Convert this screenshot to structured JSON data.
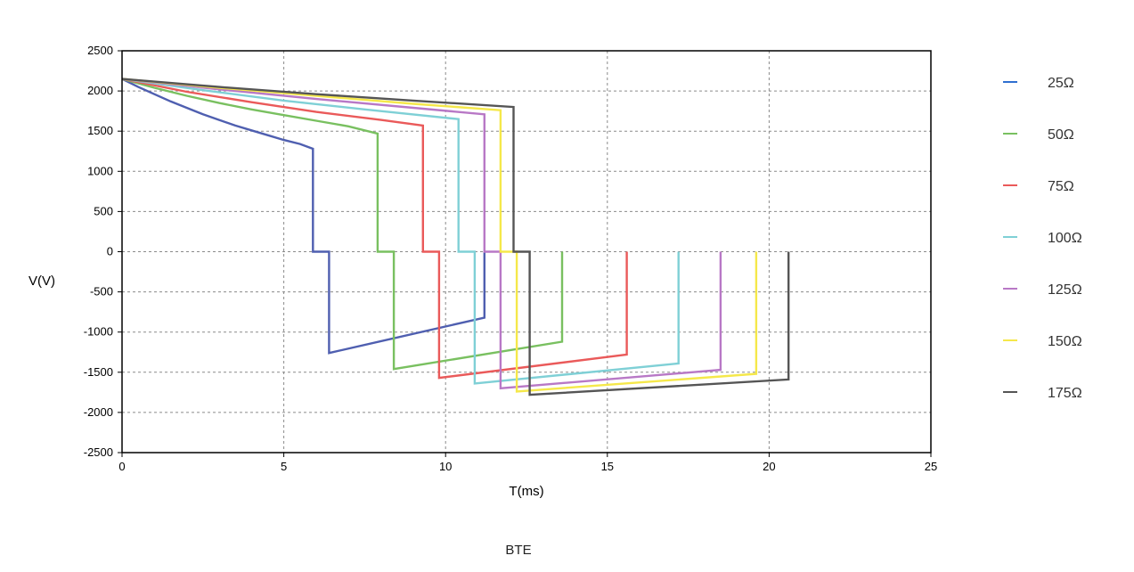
{
  "chart_data": {
    "type": "line",
    "title": "",
    "xlabel": "T(ms)",
    "ylabel": "V(V)",
    "caption": "BTE",
    "xlim": [
      0,
      25
    ],
    "ylim": [
      -2500,
      2500
    ],
    "xticks": [
      "0",
      "5",
      "10",
      "15",
      "20",
      "25"
    ],
    "yticks": [
      "2500",
      "2000",
      "1500",
      "1000",
      "500",
      "0",
      "-500",
      "-1000",
      "-1500",
      "-2000",
      "-2500"
    ],
    "grid": true,
    "legend_position": "right",
    "series": [
      {
        "name": "25Ω",
        "color": "#4f5fb0",
        "legend_color": "#2f6fd0",
        "x": [
          0,
          0.5,
          1,
          1.5,
          2,
          2.5,
          3,
          3.5,
          4,
          4.5,
          5,
          5.5,
          5.9,
          5.9,
          6.4,
          6.4,
          11.2,
          11.2
        ],
        "y": [
          2150,
          2050,
          1960,
          1870,
          1790,
          1710,
          1640,
          1570,
          1510,
          1450,
          1390,
          1340,
          1280,
          0,
          0,
          -1260,
          -820,
          0
        ]
      },
      {
        "name": "50Ω",
        "color": "#79c060",
        "x": [
          0,
          1,
          2,
          3,
          4,
          5,
          6,
          7,
          7.9,
          7.9,
          8.4,
          8.4,
          13.6,
          13.6
        ],
        "y": [
          2150,
          2040,
          1940,
          1850,
          1770,
          1700,
          1630,
          1560,
          1470,
          0,
          0,
          -1460,
          -1120,
          0
        ]
      },
      {
        "name": "75Ω",
        "color": "#ea5a5a",
        "x": [
          0,
          2,
          4,
          6,
          8,
          9.3,
          9.3,
          9.8,
          9.8,
          15.6,
          15.6
        ],
        "y": [
          2150,
          1990,
          1860,
          1740,
          1640,
          1570,
          0,
          0,
          -1570,
          -1280,
          0
        ]
      },
      {
        "name": "100Ω",
        "color": "#7fd0d6",
        "x": [
          0,
          2.5,
          5,
          7.5,
          10.4,
          10.4,
          10.9,
          10.9,
          17.2,
          17.2
        ],
        "y": [
          2150,
          2010,
          1880,
          1770,
          1650,
          0,
          0,
          -1640,
          -1390,
          0
        ]
      },
      {
        "name": "125Ω",
        "color": "#b878c6",
        "x": [
          0,
          3,
          6,
          9,
          11.2,
          11.2,
          11.7,
          11.7,
          18.5,
          18.5
        ],
        "y": [
          2150,
          2020,
          1900,
          1790,
          1710,
          0,
          0,
          -1700,
          -1470,
          0
        ]
      },
      {
        "name": "150Ω",
        "color": "#f5e84a",
        "x": [
          0,
          3,
          6,
          9,
          11.7,
          11.7,
          12.2,
          12.2,
          19.6,
          19.6
        ],
        "y": [
          2150,
          2040,
          1940,
          1840,
          1760,
          0,
          0,
          -1740,
          -1520,
          0
        ]
      },
      {
        "name": "175Ω",
        "color": "#555555",
        "x": [
          0,
          3,
          6,
          9,
          12.1,
          12.1,
          12.6,
          12.6,
          20.6,
          20.6
        ],
        "y": [
          2150,
          2050,
          1960,
          1880,
          1800,
          0,
          0,
          -1780,
          -1590,
          0
        ]
      }
    ]
  }
}
